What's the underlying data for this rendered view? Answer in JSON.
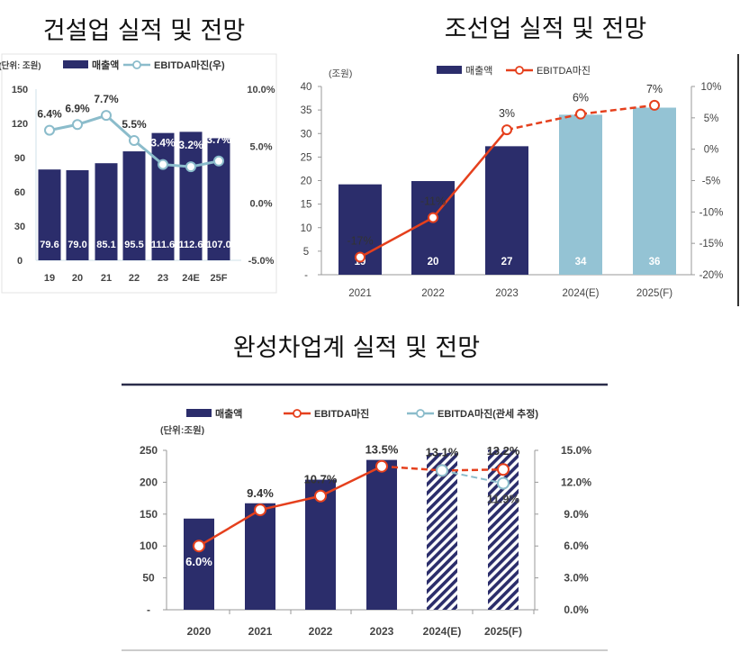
{
  "titles": {
    "construction": "건설업 실적 및 전망",
    "shipbuilding": "조선업 실적 및 전망",
    "automotive": "완성차업계 실적 및 전망"
  },
  "colors": {
    "navy": "#2b2d6b",
    "light_blue_bar": "#94c3d4",
    "teal_line": "#8bbccb",
    "red_line": "#e5401d"
  },
  "chart_data": [
    {
      "type": "bar",
      "title": "건설업 실적 및 전망",
      "unit": "(단위: 조원)",
      "categories": [
        "19",
        "20",
        "21",
        "22",
        "23",
        "24E",
        "25F"
      ],
      "ylim": [
        0,
        150
      ],
      "yticks": [
        "0",
        "30",
        "60",
        "90",
        "120",
        "150"
      ],
      "y2lim": [
        -5,
        10
      ],
      "y2ticks": [
        "-5.0%",
        "0.0%",
        "5.0%",
        "10.0%"
      ],
      "legend": [
        "매출액",
        "EBITDA마진(우)"
      ],
      "legend_position": "top",
      "grid": false,
      "series": [
        {
          "name": "매출액",
          "type": "bar",
          "values": [
            79.6,
            79.0,
            85.1,
            95.5,
            111.6,
            112.6,
            107.0
          ],
          "labels": [
            "79.6",
            "79.0",
            "85.1",
            "95.5",
            "111.6",
            "112.6",
            "107.0"
          ]
        },
        {
          "name": "EBITDA마진(우)",
          "type": "line",
          "axis": "right",
          "values": [
            6.4,
            6.9,
            7.7,
            5.5,
            3.4,
            3.2,
            3.7
          ],
          "labels": [
            "6.4%",
            "6.9%",
            "7.7%",
            "5.5%",
            "3.4%",
            "3.2%",
            "3.7%"
          ]
        }
      ]
    },
    {
      "type": "bar",
      "title": "조선업 실적 및 전망",
      "unit": "(조원)",
      "categories": [
        "2021",
        "2022",
        "2023",
        "2024(E)",
        "2025(F)"
      ],
      "ylim": [
        0,
        40
      ],
      "yticks": [
        "-",
        "5",
        "10",
        "15",
        "20",
        "25",
        "30",
        "35",
        "40"
      ],
      "y2lim": [
        -20,
        10
      ],
      "y2ticks": [
        "-20%",
        "-15%",
        "-10%",
        "-5%",
        "0%",
        "5%",
        "10%"
      ],
      "legend": [
        "매출액",
        "EBITDA마진"
      ],
      "legend_position": "top",
      "grid": false,
      "series": [
        {
          "name": "매출액",
          "type": "bar",
          "values": [
            19.2,
            19.9,
            27.3,
            34.0,
            35.5
          ],
          "labels": [
            "19",
            "20",
            "27",
            "34",
            "36"
          ]
        },
        {
          "name": "EBITDA마진",
          "type": "line",
          "axis": "right",
          "values": [
            -17.2,
            -10.9,
            3.1,
            5.6,
            7.0
          ],
          "labels": [
            "-17%",
            "-11%",
            "3%",
            "6%",
            "7%"
          ]
        }
      ]
    },
    {
      "type": "bar",
      "title": "완성차업계 실적 및 전망",
      "unit": "(단위:조원)",
      "categories": [
        "2020",
        "2021",
        "2022",
        "2023",
        "2024(E)",
        "2025(F)"
      ],
      "ylim": [
        0,
        250
      ],
      "yticks": [
        "-",
        "50",
        "100",
        "150",
        "200",
        "250"
      ],
      "y2lim": [
        0,
        15
      ],
      "y2ticks": [
        "0.0%",
        "3.0%",
        "6.0%",
        "9.0%",
        "12.0%",
        "15.0%"
      ],
      "legend": [
        "매출액",
        "EBITDA마진",
        "EBITDA마진(관세 추정)"
      ],
      "legend_position": "top",
      "grid": false,
      "series": [
        {
          "name": "매출액",
          "type": "bar",
          "values": [
            143,
            167,
            204,
            235,
            246,
            251
          ]
        },
        {
          "name": "EBITDA마진",
          "type": "line",
          "axis": "right",
          "values": [
            6.0,
            9.4,
            10.7,
            13.5,
            13.1,
            13.2
          ],
          "labels": [
            "6.0%",
            "9.4%",
            "10.7%",
            "13.5%",
            "13.1%",
            "13.2%"
          ]
        },
        {
          "name": "EBITDA마진(관세 추정)",
          "type": "line",
          "axis": "right",
          "values": [
            null,
            null,
            null,
            null,
            13.1,
            11.9
          ],
          "labels": [
            "",
            "",
            "",
            "",
            "",
            "11.9%"
          ]
        }
      ]
    }
  ]
}
